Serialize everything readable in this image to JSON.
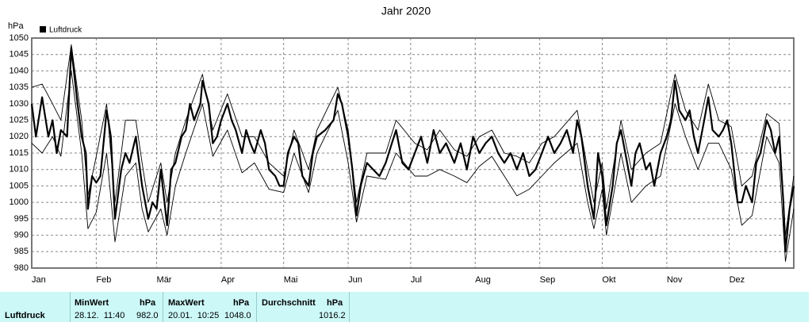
{
  "chart_data": {
    "type": "line",
    "title": "Jahr 2020",
    "ylabel": "hPa",
    "xlim": [
      0,
      366
    ],
    "xticks": [
      {
        "value": 0,
        "label": "Jan"
      },
      {
        "value": 31,
        "label": "Feb"
      },
      {
        "value": 60,
        "label": "Mär"
      },
      {
        "value": 91,
        "label": "Apr"
      },
      {
        "value": 121,
        "label": "Mai"
      },
      {
        "value": 152,
        "label": "Jun"
      },
      {
        "value": 182,
        "label": "Jul"
      },
      {
        "value": 213,
        "label": "Aug"
      },
      {
        "value": 244,
        "label": "Sep"
      },
      {
        "value": 274,
        "label": "Okt"
      },
      {
        "value": 305,
        "label": "Nov"
      },
      {
        "value": 335,
        "label": "Dez"
      }
    ],
    "ylim": [
      980,
      1050
    ],
    "yticks": [
      980,
      985,
      990,
      995,
      1000,
      1005,
      1010,
      1015,
      1020,
      1025,
      1030,
      1035,
      1040,
      1045,
      1050
    ],
    "grid": true,
    "legend": "top-left",
    "series": [
      {
        "name": "Luftdruck",
        "color": "#000000",
        "x": [
          0,
          2,
          5,
          8,
          10,
          12,
          14,
          17,
          19,
          22,
          24,
          26,
          27,
          29,
          31,
          33,
          36,
          38,
          40,
          43,
          45,
          47,
          50,
          51,
          53,
          56,
          58,
          60,
          62,
          65,
          67,
          69,
          72,
          74,
          76,
          78,
          81,
          82,
          85,
          87,
          89,
          91,
          94,
          96,
          98,
          101,
          103,
          105,
          107,
          110,
          112,
          114,
          117,
          119,
          121,
          123,
          126,
          128,
          130,
          133,
          135,
          137,
          141,
          145,
          147,
          149,
          152,
          154,
          156,
          158,
          161,
          164,
          167,
          170,
          173,
          175,
          178,
          181,
          184,
          187,
          190,
          193,
          196,
          199,
          203,
          206,
          209,
          212,
          215,
          218,
          221,
          224,
          227,
          230,
          233,
          236,
          239,
          242,
          245,
          248,
          251,
          254,
          257,
          260,
          262,
          264,
          267,
          270,
          272,
          274,
          276,
          279,
          281,
          283,
          286,
          288,
          290,
          292,
          295,
          297,
          299,
          302,
          305,
          307,
          309,
          311,
          314,
          316,
          318,
          320,
          323,
          325,
          327,
          330,
          332,
          334,
          336,
          339,
          341,
          343,
          346,
          348,
          350,
          353,
          355,
          357,
          359,
          361,
          362,
          364,
          366
        ],
        "values": [
          1030,
          1020,
          1032,
          1020,
          1025,
          1015,
          1022,
          1020,
          1047,
          1030,
          1020,
          1015,
          998,
          1008,
          1006,
          1008,
          1028,
          1020,
          995,
          1010,
          1015,
          1012,
          1020,
          1015,
          1005,
          995,
          1000,
          998,
          1010,
          993,
          1010,
          1012,
          1020,
          1022,
          1030,
          1025,
          1030,
          1037,
          1030,
          1018,
          1020,
          1025,
          1030,
          1025,
          1022,
          1015,
          1022,
          1018,
          1015,
          1022,
          1018,
          1010,
          1008,
          1005,
          1005,
          1015,
          1020,
          1018,
          1008,
          1005,
          1015,
          1020,
          1022,
          1025,
          1033,
          1030,
          1020,
          1010,
          996,
          1005,
          1012,
          1010,
          1008,
          1012,
          1018,
          1022,
          1012,
          1010,
          1015,
          1020,
          1012,
          1022,
          1015,
          1018,
          1012,
          1018,
          1010,
          1020,
          1015,
          1018,
          1020,
          1015,
          1012,
          1015,
          1010,
          1015,
          1008,
          1010,
          1015,
          1020,
          1015,
          1018,
          1022,
          1015,
          1025,
          1020,
          1005,
          995,
          1015,
          1008,
          993,
          1005,
          1018,
          1022,
          1012,
          1005,
          1015,
          1018,
          1010,
          1012,
          1005,
          1015,
          1020,
          1025,
          1037,
          1028,
          1025,
          1028,
          1020,
          1015,
          1025,
          1032,
          1022,
          1020,
          1022,
          1025,
          1018,
          1000,
          1000,
          1005,
          1000,
          1012,
          1015,
          1025,
          1022,
          1015,
          1020,
          1000,
          985,
          998,
          1005
        ]
      },
      {
        "color": "#000000",
        "x": [
          0,
          5,
          10,
          14,
          19,
          24,
          27,
          31,
          36,
          40,
          45,
          50,
          53,
          56,
          62,
          65,
          69,
          74,
          82,
          87,
          94,
          101,
          107,
          114,
          121,
          126,
          133,
          137,
          147,
          152,
          156,
          161,
          170,
          175,
          184,
          190,
          196,
          203,
          209,
          215,
          221,
          227,
          233,
          239,
          245,
          251,
          262,
          267,
          270,
          274,
          276,
          283,
          288,
          295,
          302,
          309,
          314,
          320,
          325,
          330,
          336,
          341,
          346,
          353,
          359,
          362,
          366
        ],
        "values": [
          1035,
          1036,
          1030,
          1025,
          1048,
          1025,
          1002,
          1014,
          1030,
          1000,
          1025,
          1025,
          1012,
          1000,
          1012,
          1000,
          1015,
          1025,
          1039,
          1022,
          1033,
          1020,
          1020,
          1012,
          1008,
          1022,
          1010,
          1022,
          1035,
          1022,
          1000,
          1015,
          1015,
          1025,
          1018,
          1016,
          1022,
          1016,
          1014,
          1020,
          1022,
          1015,
          1014,
          1012,
          1018,
          1020,
          1028,
          1010,
          1000,
          1012,
          998,
          1025,
          1010,
          1015,
          1018,
          1039,
          1028,
          1022,
          1036,
          1025,
          1023,
          1005,
          1008,
          1027,
          1024,
          990,
          1008
        ]
      },
      {
        "color": "#000000",
        "x": [
          0,
          5,
          10,
          14,
          19,
          24,
          27,
          31,
          36,
          40,
          45,
          50,
          53,
          56,
          62,
          65,
          69,
          74,
          82,
          87,
          94,
          101,
          107,
          114,
          121,
          126,
          133,
          137,
          147,
          152,
          156,
          161,
          170,
          175,
          184,
          190,
          196,
          203,
          209,
          215,
          221,
          227,
          233,
          239,
          245,
          251,
          262,
          267,
          270,
          274,
          276,
          283,
          288,
          295,
          302,
          309,
          314,
          320,
          325,
          330,
          336,
          341,
          346,
          353,
          359,
          362,
          366
        ],
        "values": [
          1018,
          1015,
          1020,
          1014,
          1040,
          1015,
          992,
          997,
          1015,
          988,
          1008,
          1012,
          998,
          991,
          998,
          990,
          1005,
          1015,
          1030,
          1014,
          1022,
          1009,
          1012,
          1004,
          1003,
          1015,
          1003,
          1015,
          1028,
          1012,
          994,
          1008,
          1007,
          1015,
          1008,
          1008,
          1010,
          1008,
          1006,
          1011,
          1014,
          1008,
          1002,
          1004,
          1008,
          1012,
          1018,
          1000,
          992,
          1004,
          990,
          1015,
          1000,
          1005,
          1008,
          1030,
          1020,
          1010,
          1018,
          1018,
          1010,
          993,
          996,
          1020,
          1012,
          982,
          998
        ]
      }
    ]
  },
  "table": {
    "row_label": "Luftdruck",
    "columns": [
      {
        "head": "MinWert",
        "unit": "hPa",
        "date": "28.12.  11:40",
        "value": "982.0"
      },
      {
        "head": "MaxWert",
        "unit": "hPa",
        "date": "20.01.  10:25",
        "value": "1048.0"
      },
      {
        "head": "Durchschnitt",
        "unit": "hPa",
        "value": "1016.2"
      }
    ]
  }
}
